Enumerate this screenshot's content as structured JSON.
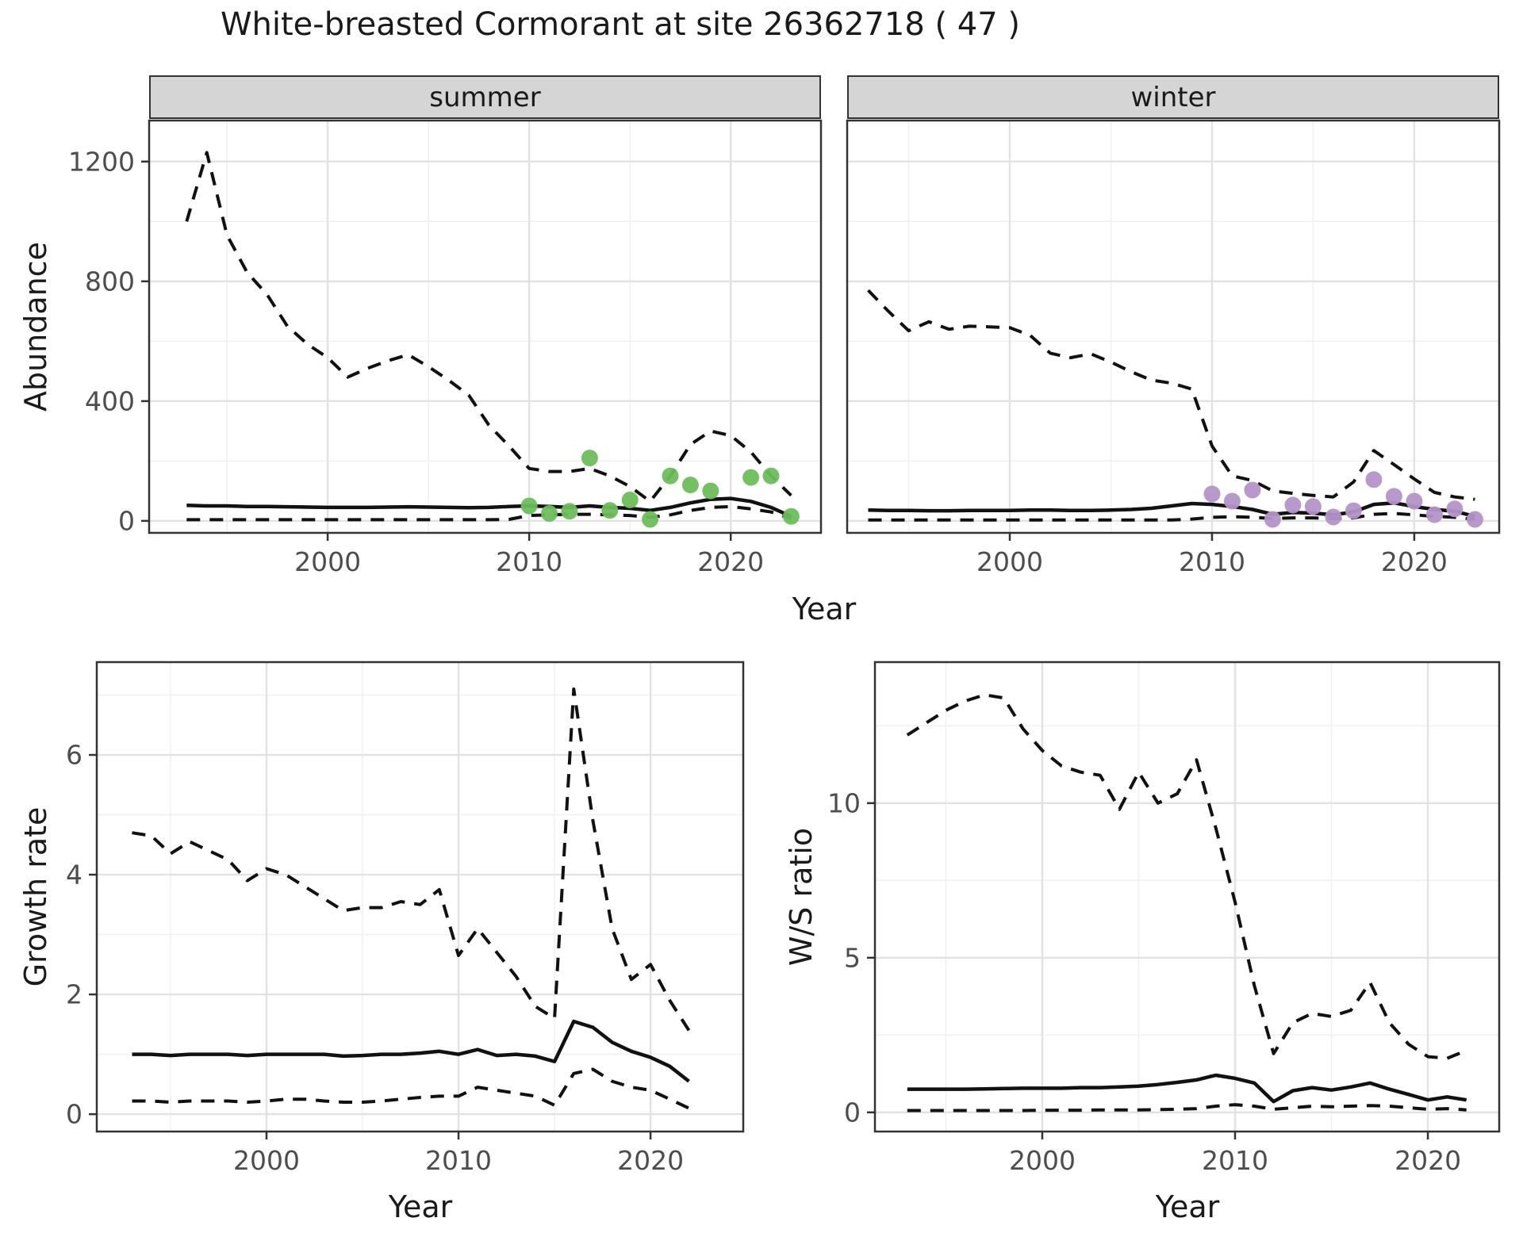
{
  "title": "White-breasted Cormorant at site 26362718 ( 47 )",
  "colors": {
    "summer_points": "#6CBE5A",
    "winter_points": "#B494C8",
    "line": "#111111",
    "grid_major": "#e2e2e2",
    "grid_minor": "#f0f0f0",
    "panel_border": "#333333",
    "tick": "#333333",
    "tick_text": "#4d4d4d",
    "strip_bg": "#d5d5d5"
  },
  "chart_data": [
    {
      "id": "summer-abundance",
      "type": "line",
      "facet_label": "summer",
      "xlabel": "Year",
      "ylabel": "Abundance",
      "xlim": [
        1991.14,
        2024.48
      ],
      "ylim": [
        -40,
        1337
      ],
      "x_major": [
        2000,
        2010,
        2020
      ],
      "x_tick_labels": [
        "2000",
        "2010",
        "2020"
      ],
      "x_minor": [
        1995,
        2005,
        2015,
        2025
      ],
      "y_major": [
        0,
        400,
        800,
        1200
      ],
      "y_tick_labels": [
        "0",
        "400",
        "800",
        "1200"
      ],
      "y_minor": [
        200,
        600,
        1000
      ],
      "has_y_tick_labels": true,
      "legend": "none",
      "series": [
        {
          "name": "upper-ci",
          "line_style": "dashed",
          "x": [
            1993,
            1994,
            1995,
            1996,
            1997,
            1998,
            1999,
            2000,
            2001,
            2002,
            2003,
            2004,
            2005,
            2006,
            2007,
            2008,
            2009,
            2010,
            2011,
            2012,
            2013,
            2014,
            2015,
            2016,
            2017,
            2018,
            2019,
            2020,
            2021,
            2022,
            2023
          ],
          "y": [
            1000,
            1230,
            955,
            830,
            755,
            650,
            590,
            545,
            480,
            510,
            535,
            555,
            515,
            470,
            420,
            320,
            250,
            175,
            165,
            165,
            175,
            150,
            115,
            65,
            150,
            255,
            300,
            285,
            230,
            150,
            85
          ]
        },
        {
          "name": "median",
          "line_style": "solid",
          "x": [
            1993,
            1994,
            1995,
            1996,
            1997,
            1998,
            1999,
            2000,
            2001,
            2002,
            2003,
            2004,
            2005,
            2006,
            2007,
            2008,
            2009,
            2010,
            2011,
            2012,
            2013,
            2014,
            2015,
            2016,
            2017,
            2018,
            2019,
            2020,
            2021,
            2022,
            2023
          ],
          "y": [
            52,
            50,
            50,
            48,
            48,
            47,
            46,
            45,
            45,
            45,
            46,
            47,
            46,
            45,
            44,
            45,
            48,
            50,
            48,
            45,
            50,
            45,
            42,
            35,
            45,
            60,
            72,
            75,
            65,
            45,
            15
          ]
        },
        {
          "name": "lower-ci",
          "line_style": "dashed",
          "x": [
            1993,
            1994,
            1995,
            1996,
            1997,
            1998,
            1999,
            2000,
            2001,
            2002,
            2003,
            2004,
            2005,
            2006,
            2007,
            2008,
            2009,
            2010,
            2011,
            2012,
            2013,
            2014,
            2015,
            2016,
            2017,
            2018,
            2019,
            2020,
            2021,
            2022,
            2023
          ],
          "y": [
            4,
            4,
            4,
            4,
            4,
            4,
            4,
            4,
            4,
            4,
            4,
            4,
            4,
            4,
            4,
            4,
            5,
            18,
            20,
            22,
            22,
            20,
            18,
            12,
            20,
            35,
            45,
            48,
            40,
            30,
            8
          ]
        }
      ],
      "points": {
        "name": "observed-counts-summer",
        "color": "#6CBE5A",
        "x": [
          2010,
          2011,
          2012,
          2013,
          2014,
          2015,
          2016,
          2017,
          2018,
          2019,
          2021,
          2022,
          2023
        ],
        "y": [
          50,
          25,
          32,
          210,
          35,
          70,
          5,
          150,
          120,
          100,
          145,
          150,
          15
        ]
      }
    },
    {
      "id": "winter-abundance",
      "type": "line",
      "facet_label": "winter",
      "xlabel": "Year",
      "ylabel": "Abundance",
      "xlim": [
        1991.96,
        2024.2
      ],
      "ylim": [
        -40,
        1337
      ],
      "x_major": [
        2000,
        2010,
        2020
      ],
      "x_tick_labels": [
        "2000",
        "2010",
        "2020"
      ],
      "x_minor": [
        1995,
        2005,
        2015,
        2025
      ],
      "y_major": [
        0,
        400,
        800,
        1200
      ],
      "y_tick_labels": [
        "0",
        "400",
        "800",
        "1200"
      ],
      "y_minor": [
        200,
        600,
        1000
      ],
      "has_y_tick_labels": false,
      "legend": "none",
      "series": [
        {
          "name": "upper-ci",
          "line_style": "dashed",
          "x": [
            1993,
            1994,
            1995,
            1996,
            1997,
            1998,
            1999,
            2000,
            2001,
            2002,
            2003,
            2004,
            2005,
            2006,
            2007,
            2008,
            2009,
            2010,
            2011,
            2012,
            2013,
            2014,
            2015,
            2016,
            2017,
            2018,
            2019,
            2020,
            2021,
            2022,
            2023
          ],
          "y": [
            770,
            700,
            635,
            665,
            640,
            650,
            648,
            645,
            620,
            560,
            545,
            558,
            530,
            498,
            470,
            460,
            440,
            250,
            150,
            135,
            100,
            92,
            85,
            80,
            130,
            235,
            188,
            140,
            95,
            80,
            72
          ]
        },
        {
          "name": "median",
          "line_style": "solid",
          "x": [
            1993,
            1994,
            1995,
            1996,
            1997,
            1998,
            1999,
            2000,
            2001,
            2002,
            2003,
            2004,
            2005,
            2006,
            2007,
            2008,
            2009,
            2010,
            2011,
            2012,
            2013,
            2014,
            2015,
            2016,
            2017,
            2018,
            2019,
            2020,
            2021,
            2022,
            2023
          ],
          "y": [
            36,
            35,
            35,
            34,
            34,
            35,
            35,
            35,
            36,
            36,
            35,
            35,
            36,
            38,
            42,
            50,
            58,
            55,
            48,
            38,
            22,
            28,
            26,
            20,
            30,
            55,
            60,
            48,
            38,
            32,
            15
          ]
        },
        {
          "name": "lower-ci",
          "line_style": "dashed",
          "x": [
            1993,
            1994,
            1995,
            1996,
            1997,
            1998,
            1999,
            2000,
            2001,
            2002,
            2003,
            2004,
            2005,
            2006,
            2007,
            2008,
            2009,
            2010,
            2011,
            2012,
            2013,
            2014,
            2015,
            2016,
            2017,
            2018,
            2019,
            2020,
            2021,
            2022,
            2023
          ],
          "y": [
            3,
            3,
            3,
            3,
            3,
            3,
            3,
            3,
            3,
            3,
            3,
            3,
            3,
            3,
            3,
            3,
            6,
            12,
            14,
            12,
            8,
            10,
            10,
            8,
            10,
            22,
            25,
            20,
            15,
            12,
            5
          ]
        }
      ],
      "points": {
        "name": "observed-counts-winter",
        "color": "#B494C8",
        "x": [
          2010,
          2011,
          2012,
          2013,
          2014,
          2015,
          2016,
          2017,
          2018,
          2019,
          2020,
          2021,
          2022,
          2023
        ],
        "y": [
          90,
          66,
          103,
          5,
          53,
          48,
          13,
          34,
          138,
          82,
          66,
          21,
          40,
          5
        ]
      }
    },
    {
      "id": "growth-rate",
      "type": "line",
      "facet_label": "",
      "xlabel": "Year",
      "ylabel": "Growth rate",
      "xlim": [
        1991.16,
        2024.83
      ],
      "ylim": [
        -0.29,
        7.55
      ],
      "x_major": [
        2000,
        2010,
        2020
      ],
      "x_tick_labels": [
        "2000",
        "2010",
        "2020"
      ],
      "x_minor": [
        1995,
        2005,
        2015,
        2025
      ],
      "y_major": [
        0,
        2,
        4,
        6
      ],
      "y_tick_labels": [
        "0",
        "2",
        "4",
        "6"
      ],
      "y_minor": [
        1,
        3,
        5,
        7
      ],
      "has_y_tick_labels": true,
      "legend": "none",
      "series": [
        {
          "name": "upper-ci",
          "line_style": "dashed",
          "x": [
            1993,
            1994,
            1995,
            1996,
            1997,
            1998,
            1999,
            2000,
            2001,
            2002,
            2003,
            2004,
            2005,
            2006,
            2007,
            2008,
            2009,
            2010,
            2011,
            2012,
            2013,
            2014,
            2015,
            2016,
            2017,
            2018,
            2019,
            2020,
            2021,
            2022
          ],
          "y": [
            4.7,
            4.65,
            4.35,
            4.55,
            4.4,
            4.25,
            3.9,
            4.1,
            4.0,
            3.8,
            3.6,
            3.4,
            3.45,
            3.45,
            3.55,
            3.5,
            3.75,
            2.65,
            3.1,
            2.7,
            2.3,
            1.8,
            1.6,
            7.1,
            4.9,
            3.1,
            2.25,
            2.5,
            1.9,
            1.4
          ]
        },
        {
          "name": "median",
          "line_style": "solid",
          "x": [
            1993,
            1994,
            1995,
            1996,
            1997,
            1998,
            1999,
            2000,
            2001,
            2002,
            2003,
            2004,
            2005,
            2006,
            2007,
            2008,
            2009,
            2010,
            2011,
            2012,
            2013,
            2014,
            2015,
            2016,
            2017,
            2018,
            2019,
            2020,
            2021,
            2022
          ],
          "y": [
            1.0,
            1.0,
            0.98,
            1.0,
            1.0,
            1.0,
            0.98,
            1.0,
            1.0,
            1.0,
            1.0,
            0.97,
            0.98,
            1.0,
            1.0,
            1.02,
            1.05,
            1.0,
            1.08,
            0.98,
            1.0,
            0.97,
            0.88,
            1.55,
            1.45,
            1.2,
            1.05,
            0.95,
            0.8,
            0.55
          ]
        },
        {
          "name": "lower-ci",
          "line_style": "dashed",
          "x": [
            1993,
            1994,
            1995,
            1996,
            1997,
            1998,
            1999,
            2000,
            2001,
            2002,
            2003,
            2004,
            2005,
            2006,
            2007,
            2008,
            2009,
            2010,
            2011,
            2012,
            2013,
            2014,
            2015,
            2016,
            2017,
            2018,
            2019,
            2020,
            2021,
            2022
          ],
          "y": [
            0.22,
            0.22,
            0.2,
            0.22,
            0.22,
            0.22,
            0.2,
            0.22,
            0.25,
            0.25,
            0.22,
            0.2,
            0.2,
            0.22,
            0.25,
            0.28,
            0.3,
            0.3,
            0.45,
            0.4,
            0.35,
            0.3,
            0.15,
            0.68,
            0.75,
            0.55,
            0.45,
            0.4,
            0.25,
            0.1
          ]
        }
      ],
      "points": null
    },
    {
      "id": "ws-ratio",
      "type": "line",
      "facet_label": "",
      "xlabel": "Year",
      "ylabel": "W/S ratio",
      "xlim": [
        1991.32,
        2023.7
      ],
      "ylim": [
        -0.62,
        14.56
      ],
      "x_major": [
        2000,
        2010,
        2020
      ],
      "x_tick_labels": [
        "2000",
        "2010",
        "2020"
      ],
      "x_minor": [
        1995,
        2005,
        2015,
        2025
      ],
      "y_major": [
        0,
        5,
        10
      ],
      "y_tick_labels": [
        "0",
        "5",
        "10"
      ],
      "y_minor": [
        2.5,
        7.5,
        12.5
      ],
      "has_y_tick_labels": true,
      "legend": "none",
      "series": [
        {
          "name": "upper-ci",
          "line_style": "dashed",
          "x": [
            1993,
            1994,
            1995,
            1996,
            1997,
            1998,
            1999,
            2000,
            2001,
            2002,
            2003,
            2004,
            2005,
            2006,
            2007,
            2008,
            2009,
            2010,
            2011,
            2012,
            2013,
            2014,
            2015,
            2016,
            2017,
            2018,
            2019,
            2020,
            2021,
            2022
          ],
          "y": [
            12.2,
            12.6,
            13.0,
            13.3,
            13.5,
            13.4,
            12.4,
            11.7,
            11.2,
            11.0,
            10.9,
            9.8,
            11.0,
            10.0,
            10.3,
            11.4,
            9.2,
            6.8,
            4.1,
            1.9,
            2.9,
            3.2,
            3.1,
            3.3,
            4.2,
            2.9,
            2.2,
            1.8,
            1.75,
            2.0
          ]
        },
        {
          "name": "median",
          "line_style": "solid",
          "x": [
            1993,
            1994,
            1995,
            1996,
            1997,
            1998,
            1999,
            2000,
            2001,
            2002,
            2003,
            2004,
            2005,
            2006,
            2007,
            2008,
            2009,
            2010,
            2011,
            2012,
            2013,
            2014,
            2015,
            2016,
            2017,
            2018,
            2019,
            2020,
            2021,
            2022
          ],
          "y": [
            0.75,
            0.75,
            0.75,
            0.75,
            0.76,
            0.77,
            0.78,
            0.78,
            0.78,
            0.8,
            0.8,
            0.82,
            0.85,
            0.9,
            0.97,
            1.05,
            1.2,
            1.1,
            0.95,
            0.35,
            0.7,
            0.8,
            0.72,
            0.82,
            0.95,
            0.75,
            0.58,
            0.4,
            0.5,
            0.4
          ]
        },
        {
          "name": "lower-ci",
          "line_style": "dashed",
          "x": [
            1993,
            1994,
            1995,
            1996,
            1997,
            1998,
            1999,
            2000,
            2001,
            2002,
            2003,
            2004,
            2005,
            2006,
            2007,
            2008,
            2009,
            2010,
            2011,
            2012,
            2013,
            2014,
            2015,
            2016,
            2017,
            2018,
            2019,
            2020,
            2021,
            2022
          ],
          "y": [
            0.06,
            0.06,
            0.06,
            0.06,
            0.06,
            0.06,
            0.06,
            0.07,
            0.07,
            0.07,
            0.08,
            0.08,
            0.08,
            0.09,
            0.1,
            0.12,
            0.2,
            0.25,
            0.2,
            0.1,
            0.15,
            0.2,
            0.18,
            0.2,
            0.22,
            0.2,
            0.15,
            0.1,
            0.12,
            0.08
          ]
        }
      ],
      "points": null
    }
  ]
}
